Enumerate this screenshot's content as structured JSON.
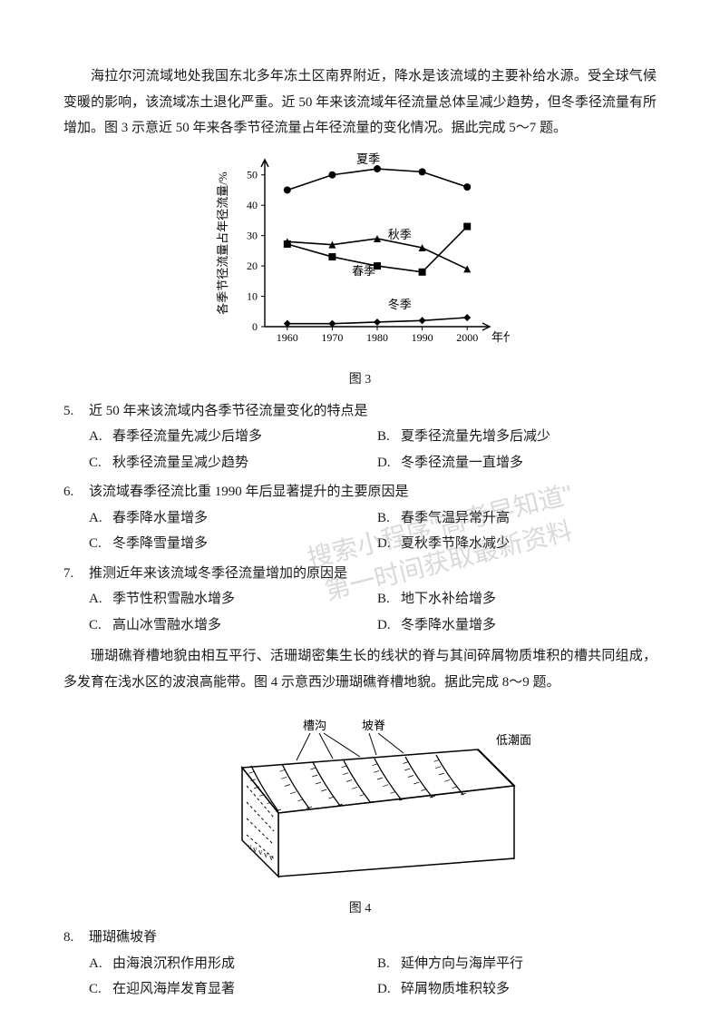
{
  "intro1": "海拉尔河流域地处我国东北多年冻土区南界附近，降水是该流域的主要补给水源。受全球气候变暖的影响，该流域冻土退化严重。近 50 年来该流域年径流量总体呈减少趋势，但冬季径流量有所增加。图 3 示意近 50 年来各季节径流量占年径流量的变化情况。据此完成 5～7 题。",
  "chart3": {
    "type": "line",
    "xlabel_right": "年代",
    "ylabel": "各季节径流量占年径流量/%",
    "xticks": [
      "1960",
      "1970",
      "1980",
      "1990",
      "2000"
    ],
    "yticks": [
      0,
      10,
      20,
      30,
      40,
      50
    ],
    "ylim": [
      0,
      55
    ],
    "background": "#ffffff",
    "axis_color": "#000000",
    "line_color": "#000000",
    "line_width": 1.6,
    "label_fontsize": 13,
    "axis_fontsize": 12,
    "series": [
      {
        "name": "夏季",
        "marker": "circle",
        "x": [
          1960,
          1970,
          1980,
          1990,
          2000
        ],
        "y": [
          45,
          50,
          52,
          51,
          46
        ],
        "label_pos": [
          1978,
          54
        ]
      },
      {
        "name": "秋季",
        "marker": "triangle",
        "x": [
          1960,
          1970,
          1980,
          1990,
          2000
        ],
        "y": [
          28,
          27,
          29,
          26,
          19
        ],
        "label_pos": [
          1985,
          29
        ]
      },
      {
        "name": "春季",
        "marker": "square",
        "x": [
          1960,
          1970,
          1980,
          1990,
          2000
        ],
        "y": [
          27.2,
          23,
          20,
          18,
          33
        ],
        "label_pos": [
          1977,
          17
        ]
      },
      {
        "name": "冬季",
        "marker": "diamond",
        "x": [
          1960,
          1970,
          1980,
          1990,
          2000
        ],
        "y": [
          1,
          1,
          1.5,
          2,
          3
        ],
        "label_pos": [
          1985,
          6
        ]
      }
    ]
  },
  "caption3": "图 3",
  "q5": {
    "num": "5.",
    "stem": "近 50 年来该流域内各季节径流量变化的特点是",
    "opts": {
      "A": "春季径流量先减少后增多",
      "B": "夏季径流量先增多后减少",
      "C": "秋季径流量呈减少趋势",
      "D": "冬季径流量一直增多"
    }
  },
  "q6": {
    "num": "6.",
    "stem": "该流域春季径流比重 1990 年后显著提升的主要原因是",
    "opts": {
      "A": "春季降水量增多",
      "B": "春季气温异常升高",
      "C": "冬季降雪量增多",
      "D": "夏秋季节降水减少"
    }
  },
  "q7": {
    "num": "7.",
    "stem": "推测近年来该流域冬季径流量增加的原因是",
    "opts": {
      "A": "季节性积雪融水增多",
      "B": "地下水补给增多",
      "C": "高山冰雪融水增多",
      "D": "冬季降水量增多"
    }
  },
  "intro2": "珊瑚礁脊槽地貌由相互平行、活珊瑚密集生长的线状的脊与其间碎屑物质堆积的槽共同组成，多发育在浅水区的波浪高能带。图 4 示意西沙珊瑚礁脊槽地貌。据此完成 8～9 题。",
  "diagram4": {
    "labels": {
      "trough": "槽沟",
      "ridge": "坡脊",
      "lowtide": "低潮面"
    },
    "stroke": "#000000",
    "fill": "#ffffff",
    "hatch_color": "#000000"
  },
  "caption4": "图 4",
  "q8": {
    "num": "8.",
    "stem": "珊瑚礁坡脊",
    "opts": {
      "A": "由海浪沉积作用形成",
      "B": "延伸方向与海岸平行",
      "C": "在迎风海岸发育显著",
      "D": "碎屑物质堆积较多"
    }
  },
  "watermark_lines": [
    "搜索小程序\"高考早知道\"",
    "第一时间获取最新资料"
  ]
}
